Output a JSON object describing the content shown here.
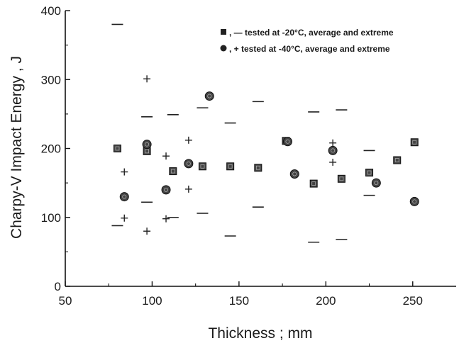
{
  "chart_data": {
    "type": "scatter",
    "xlabel": "Thickness ; mm",
    "ylabel": "Charpy-V Impact Energy , J",
    "xlim": [
      50,
      275
    ],
    "ylim": [
      0,
      400
    ],
    "x_ticks": [
      "50",
      "100",
      "150",
      "200",
      "250"
    ],
    "y_ticks": [
      "0",
      "100",
      "200",
      "300",
      "400"
    ],
    "grid": false,
    "legend_position": "top-right",
    "series": [
      {
        "name": ", — tested at -20°C, average and extreme",
        "marker": "square-average-dash-extreme",
        "points": [
          {
            "x": 80,
            "avg": 200,
            "max": 380,
            "min": 88
          },
          {
            "x": 97,
            "avg": 196,
            "max": 246,
            "min": 122
          },
          {
            "x": 112,
            "avg": 167,
            "max": 249,
            "min": 100
          },
          {
            "x": 129,
            "avg": 174,
            "max": 259,
            "min": 106
          },
          {
            "x": 145,
            "avg": 174,
            "max": 237,
            "min": 73
          },
          {
            "x": 161,
            "avg": 172,
            "max": 268,
            "min": 115
          },
          {
            "x": 177,
            "avg": 211
          },
          {
            "x": 193,
            "avg": 149,
            "max": 253,
            "min": 64
          },
          {
            "x": 209,
            "avg": 156,
            "max": 256,
            "min": 68
          },
          {
            "x": 225,
            "avg": 165,
            "max": 197,
            "min": 132
          },
          {
            "x": 241,
            "avg": 183
          },
          {
            "x": 251,
            "avg": 209
          }
        ]
      },
      {
        "name": ", + tested at -40°C, average and extreme",
        "marker": "circle-average-plus-extreme",
        "points": [
          {
            "x": 84,
            "avg": 130,
            "max": 166,
            "min": 99
          },
          {
            "x": 97,
            "avg": 206,
            "max": 301,
            "min": 80
          },
          {
            "x": 108,
            "avg": 140,
            "max": 189,
            "min": 98
          },
          {
            "x": 121,
            "avg": 178,
            "max": 212,
            "min": 141
          },
          {
            "x": 133,
            "avg": 276
          },
          {
            "x": 178,
            "avg": 210
          },
          {
            "x": 182,
            "avg": 163
          },
          {
            "x": 204,
            "avg": 197,
            "max": 208,
            "min": 180
          },
          {
            "x": 229,
            "avg": 150
          },
          {
            "x": 251,
            "avg": 123
          }
        ]
      }
    ]
  },
  "legend": {
    "entry_1": ", — tested at -20°C, average and extreme",
    "entry_2": ", + tested at -40°C, average and extreme"
  }
}
